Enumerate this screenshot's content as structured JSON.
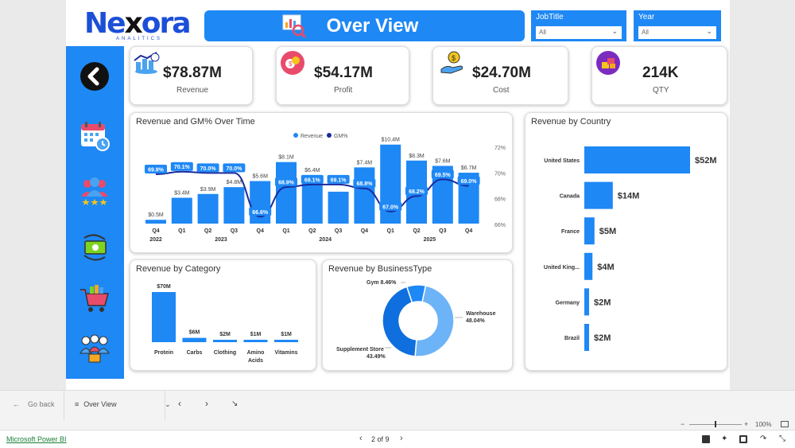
{
  "logo": {
    "main_a": "Ne",
    "main_x": "x",
    "main_b": "ora",
    "sub": "ANALITICS"
  },
  "header": {
    "title": "Over View"
  },
  "slicers": [
    {
      "label": "JobTitle",
      "value": "All"
    },
    {
      "label": "Year",
      "value": "All"
    }
  ],
  "kpis": [
    {
      "value": "$78.87M",
      "label": "Revenue"
    },
    {
      "value": "$54.17M",
      "label": "Profit"
    },
    {
      "value": "$24.70M",
      "label": "Cost"
    },
    {
      "value": "214K",
      "label": "QTY"
    }
  ],
  "charts": {
    "revenue_gm": {
      "title": "Revenue and GM% Over Time",
      "legend_revenue": "Revenue",
      "legend_gm": "GM%"
    },
    "country": {
      "title": "Revenue by Country"
    },
    "category": {
      "title": "Revenue by Category"
    },
    "business": {
      "title": "Revenue by BusinessType"
    }
  },
  "chart_data": [
    {
      "type": "bar",
      "title": "Revenue and GM% Over Time",
      "categories": [
        "Q4",
        "Q1",
        "Q2",
        "Q3",
        "Q4",
        "Q1",
        "Q2",
        "Q3",
        "Q4",
        "Q1",
        "Q2",
        "Q3",
        "Q4"
      ],
      "year_labels": [
        {
          "label": "2022",
          "index": 0
        },
        {
          "label": "2023",
          "index": 2
        },
        {
          "label": "2024",
          "index": 6
        },
        {
          "label": "2025",
          "index": 10
        }
      ],
      "series": [
        {
          "name": "Revenue",
          "values": [
            0.5,
            3.4,
            3.9,
            4.8,
            5.6,
            8.1,
            6.4,
            4.2,
            7.4,
            10.4,
            8.3,
            7.6,
            6.7
          ],
          "labels": [
            "$0.5M",
            "$3.4M",
            "$3.9M",
            "$4.8M",
            "$5.6M",
            "$8.1M",
            "$6.4M",
            "",
            "$7.4M",
            "$10.4M",
            "$8.3M",
            "$7.6M",
            "$6.7M"
          ]
        },
        {
          "name": "GM%",
          "values": [
            69.9,
            70.1,
            70.0,
            70.0,
            66.6,
            68.9,
            69.1,
            69.1,
            68.8,
            67.0,
            68.2,
            69.5,
            69.0
          ],
          "labels": [
            "69.9%",
            "70.1%",
            "70.0%",
            "70.0%",
            "66.6%",
            "68.9%",
            "69.1%",
            "69.1%",
            "68.8%",
            "67.0%",
            "68.2%",
            "69.5%",
            "69.0%"
          ]
        }
      ],
      "y2_ticks": [
        "72%",
        "70%",
        "68%",
        "66%"
      ],
      "y2lim": [
        66,
        72
      ]
    },
    {
      "type": "bar",
      "title": "Revenue by Country",
      "categories": [
        "United States",
        "Canada",
        "France",
        "United King...",
        "Germany",
        "Brazil"
      ],
      "values": [
        52,
        14,
        5,
        4,
        2,
        2
      ],
      "labels": [
        "$52M",
        "$14M",
        "$5M",
        "$4M",
        "$2M",
        "$2M"
      ]
    },
    {
      "type": "bar",
      "title": "Revenue by Category",
      "categories": [
        "Protein",
        "Carbs",
        "Clothing",
        "Amino Acids",
        "Vitamins"
      ],
      "values": [
        70,
        6,
        2,
        1,
        1
      ],
      "labels": [
        "$70M",
        "$6M",
        "$2M",
        "$1M",
        "$1M"
      ]
    },
    {
      "type": "pie",
      "title": "Revenue by BusinessType",
      "categories": [
        "Warehouse",
        "Supplement Store",
        "Gym"
      ],
      "values": [
        48.04,
        43.49,
        8.46
      ],
      "labels": [
        "48.04%",
        "43.49%",
        "8.46%"
      ]
    }
  ],
  "footer": {
    "go_back": "Go back",
    "page_name": "Over View",
    "zoom": "100%",
    "app_link": "Microsoft Power BI",
    "page_indicator": "2 of 9"
  },
  "colors": {
    "accent": "#1e88f5",
    "line": "#1a2a9c",
    "donut_light": "#6db3f7",
    "donut_dark": "#0f6fde"
  },
  "icons": {
    "back": "back-arrow-icon",
    "calendar": "calendar-icon",
    "people": "people-rating-icon",
    "money": "money-cycle-icon",
    "cart": "shopping-cart-icon",
    "team": "team-icon"
  }
}
